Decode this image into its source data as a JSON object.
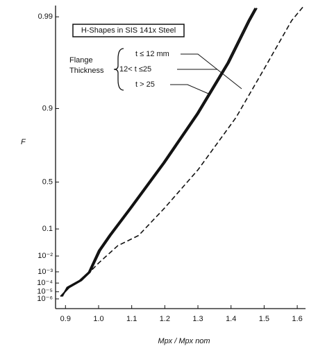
{
  "chart_data": {
    "type": "line",
    "annotation": "H-Shapes in SIS 141x Steel",
    "legend_title": "Flange Thickness",
    "ylabel": "F",
    "xlabel": "Mpx / Mpx nom",
    "yscale": "gumbel",
    "xlim": [
      0.87,
      1.625
    ],
    "xticks": [
      0.9,
      {
        "value": 1,
        "label": "1.0"
      },
      1.1,
      1.2,
      1.3,
      1.4,
      1.5,
      1.6
    ],
    "ylim": [
      2e-08,
      0.9925
    ],
    "yticks": [
      0.99,
      0.9,
      0.5,
      0.1,
      {
        "value": 0.01,
        "label": "10⁻²"
      },
      {
        "value": 0.001,
        "label": "10⁻³"
      },
      {
        "value": 0.0001,
        "label": "10⁻⁴"
      },
      {
        "value": 1e-05,
        "label": "10⁻⁵"
      },
      {
        "value": 1e-06,
        "label": "10⁻⁶"
      }
    ],
    "series": [
      {
        "name": "t ≤ 12 mm",
        "color": "#111111",
        "dash": true,
        "x": [
          0.948,
          1.0,
          1.058,
          1.121,
          1.2,
          1.301,
          1.415,
          1.499,
          1.583,
          1.618
        ],
        "values": [
          0.00018,
          0.004,
          0.029,
          0.066,
          0.263,
          0.605,
          0.876,
          0.962,
          0.989,
          0.9923
        ]
      },
      {
        "name": "12< t ≤25",
        "color": "#111111",
        "dash": false,
        "x": [
          0.885,
          0.911,
          0.948,
          0.974,
          1.005,
          1.037,
          1.1,
          1.2,
          1.301,
          1.394,
          1.457,
          1.478
        ],
        "values": [
          2.3e-06,
          3.3e-05,
          0.00018,
          0.00094,
          0.018,
          0.066,
          0.263,
          0.656,
          0.886,
          0.968,
          0.989,
          0.992
        ]
      },
      {
        "name": "t > 25",
        "color": "#111111",
        "dash": false,
        "x": [
          0.89,
          0.905,
          0.943,
          0.97,
          1.0,
          1.032,
          1.095,
          1.195,
          1.296,
          1.389,
          1.452,
          1.473
        ],
        "values": [
          2.3e-06,
          3.3e-05,
          0.00018,
          0.00094,
          0.018,
          0.066,
          0.263,
          0.656,
          0.886,
          0.968,
          0.989,
          0.992
        ]
      }
    ]
  }
}
